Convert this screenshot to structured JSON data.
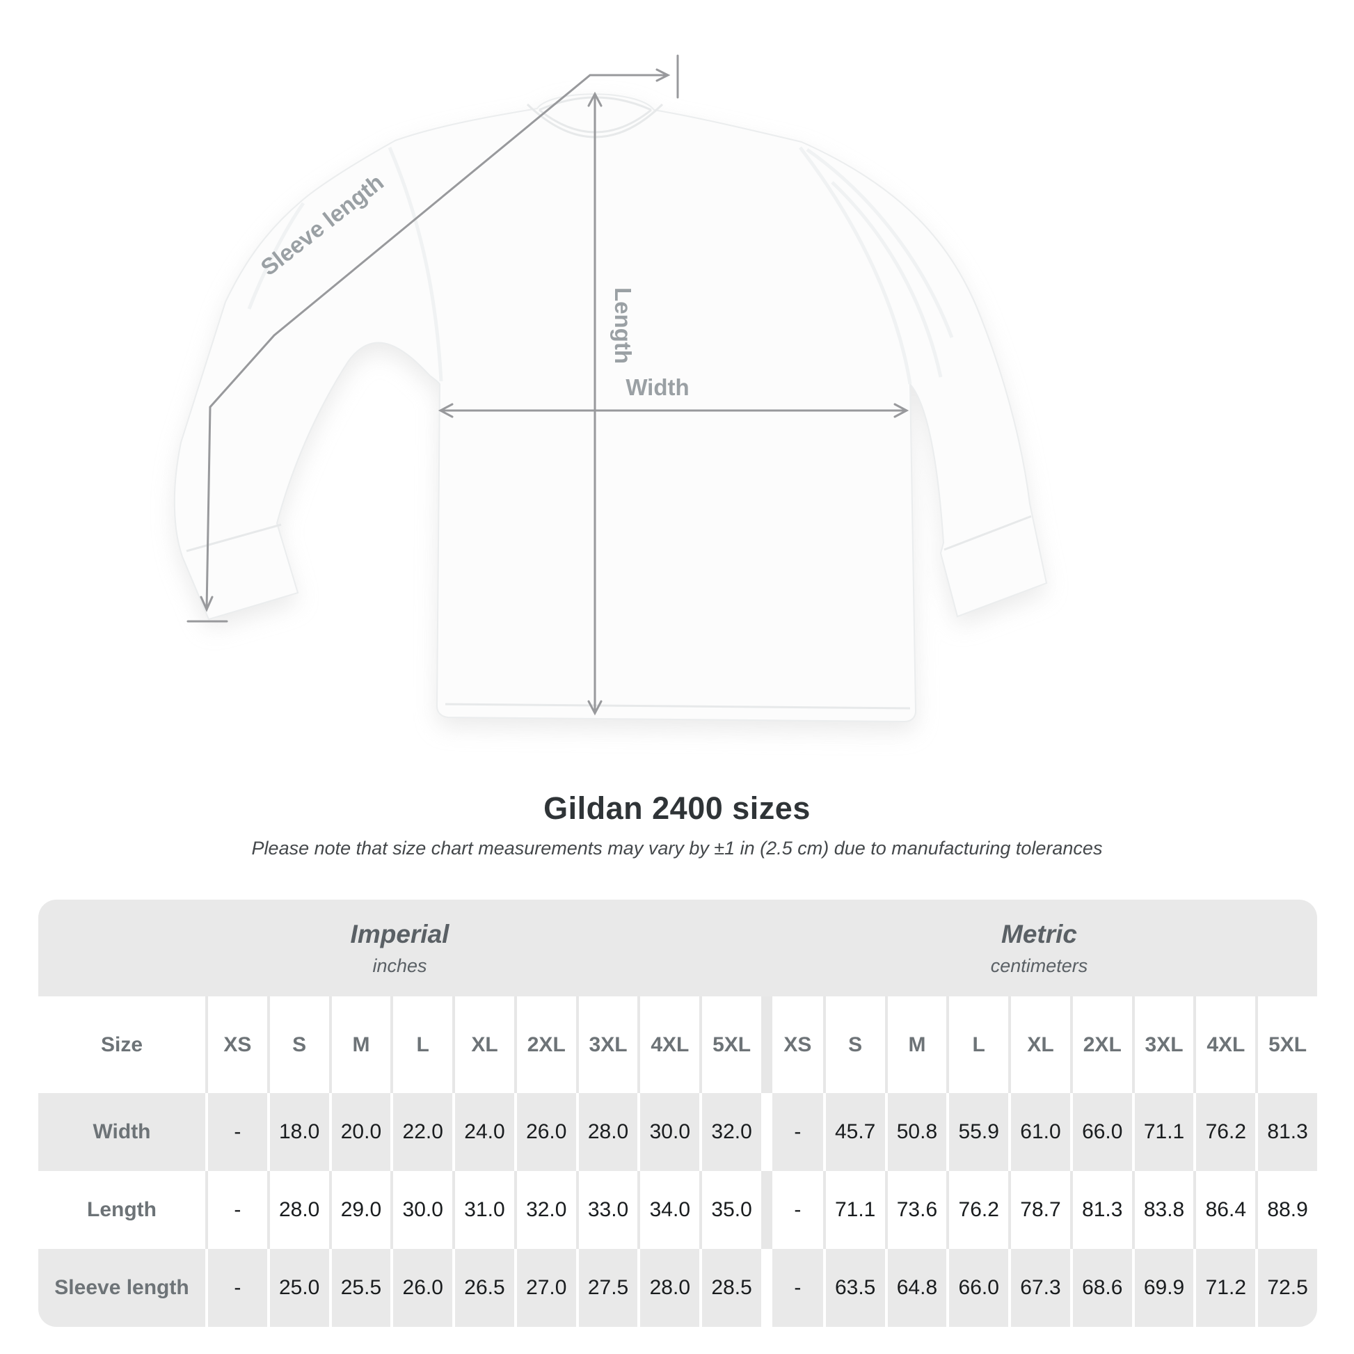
{
  "diagram": {
    "labels": {
      "sleeve_length": "Sleeve length",
      "length": "Length",
      "width": "Width"
    },
    "line_color": "#98999c",
    "label_color": "#9aa0a4"
  },
  "heading": {
    "title": "Gildan 2400 sizes",
    "note": "Please note that size chart measurements may vary by ±1 in (2.5 cm) due to manufacturing tolerances"
  },
  "chart_data": {
    "type": "table",
    "title": "Gildan 2400 sizes",
    "note": "Please note that size chart measurements may vary by ±1 in (2.5 cm) due to manufacturing tolerances",
    "unit_groups": [
      {
        "title": "Imperial",
        "subtitle": "inches"
      },
      {
        "title": "Metric",
        "subtitle": "centimeters"
      }
    ],
    "size_label": "Size",
    "sizes": [
      "XS",
      "S",
      "M",
      "L",
      "XL",
      "2XL",
      "3XL",
      "4XL",
      "5XL"
    ],
    "rows": [
      {
        "label": "Width",
        "imperial": [
          "-",
          "18.0",
          "20.0",
          "22.0",
          "24.0",
          "26.0",
          "28.0",
          "30.0",
          "32.0"
        ],
        "metric": [
          "-",
          "45.7",
          "50.8",
          "55.9",
          "61.0",
          "66.0",
          "71.1",
          "76.2",
          "81.3"
        ]
      },
      {
        "label": "Length",
        "imperial": [
          "-",
          "28.0",
          "29.0",
          "30.0",
          "31.0",
          "32.0",
          "33.0",
          "34.0",
          "35.0"
        ],
        "metric": [
          "-",
          "71.1",
          "73.6",
          "76.2",
          "78.7",
          "81.3",
          "83.8",
          "86.4",
          "88.9"
        ]
      },
      {
        "label": "Sleeve length",
        "imperial": [
          "-",
          "25.0",
          "25.5",
          "26.0",
          "26.5",
          "27.0",
          "27.5",
          "28.0",
          "28.5"
        ],
        "metric": [
          "-",
          "63.5",
          "64.8",
          "66.0",
          "67.3",
          "68.6",
          "69.9",
          "71.2",
          "72.5"
        ]
      }
    ]
  }
}
